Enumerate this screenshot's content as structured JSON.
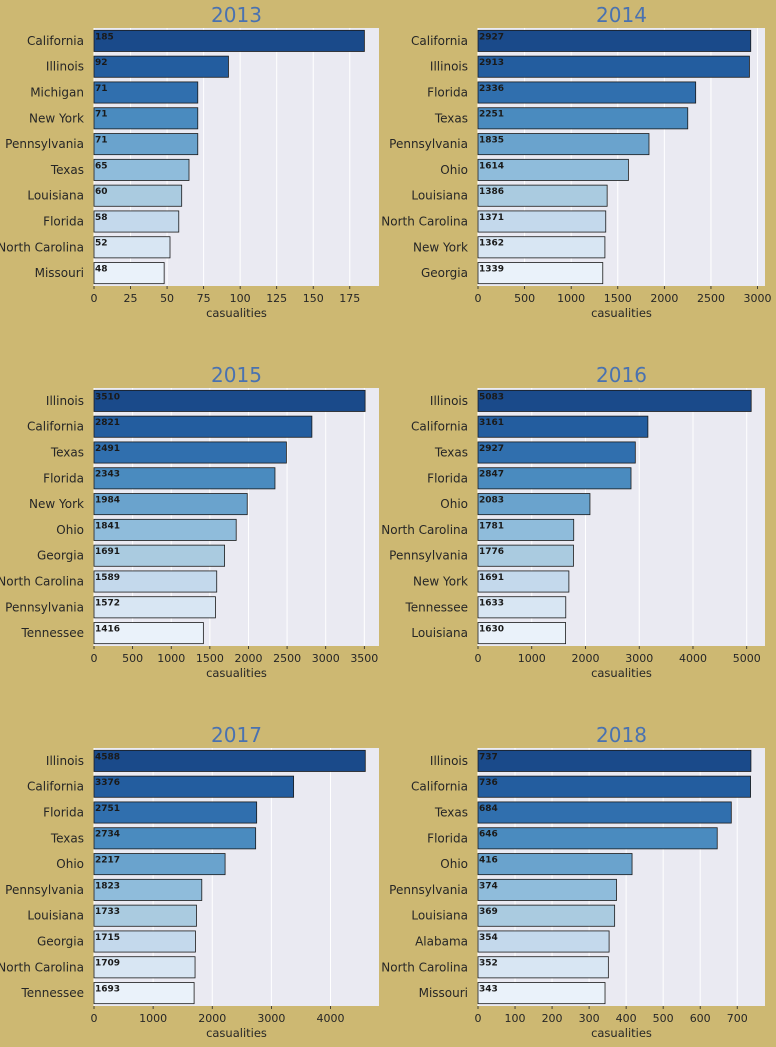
{
  "chart_data": [
    {
      "type": "bar",
      "orientation": "horizontal",
      "title": "2013",
      "xlabel": "casualities",
      "categories": [
        "California",
        "Illinois",
        "Michigan",
        "New York",
        "Pennsylvania",
        "Texas",
        "Louisiana",
        "Florida",
        "North Carolina",
        "Missouri"
      ],
      "values": [
        185,
        92,
        71,
        71,
        71,
        65,
        60,
        58,
        52,
        48
      ],
      "xticks": [
        0,
        25,
        50,
        75,
        100,
        125,
        150,
        175
      ],
      "xlim": [
        0,
        195
      ]
    },
    {
      "type": "bar",
      "orientation": "horizontal",
      "title": "2014",
      "xlabel": "casualities",
      "categories": [
        "California",
        "Illinois",
        "Florida",
        "Texas",
        "Pennsylvania",
        "Ohio",
        "Louisiana",
        "North Carolina",
        "New York",
        "Georgia"
      ],
      "values": [
        2927,
        2913,
        2336,
        2251,
        1835,
        1614,
        1386,
        1371,
        1362,
        1339
      ],
      "xticks": [
        0,
        500,
        1000,
        1500,
        2000,
        2500,
        3000
      ],
      "xlim": [
        0,
        3080
      ]
    },
    {
      "type": "bar",
      "orientation": "horizontal",
      "title": "2015",
      "xlabel": "casualities",
      "categories": [
        "Illinois",
        "California",
        "Texas",
        "Florida",
        "New York",
        "Ohio",
        "Georgia",
        "North Carolina",
        "Pennsylvania",
        "Tennessee"
      ],
      "values": [
        3510,
        2821,
        2491,
        2343,
        1984,
        1841,
        1691,
        1589,
        1572,
        1416
      ],
      "xticks": [
        0,
        500,
        1000,
        1500,
        2000,
        2500,
        3000,
        3500
      ],
      "xlim": [
        0,
        3690
      ]
    },
    {
      "type": "bar",
      "orientation": "horizontal",
      "title": "2016",
      "xlabel": "casualities",
      "categories": [
        "Illinois",
        "California",
        "Texas",
        "Florida",
        "Ohio",
        "North Carolina",
        "Pennsylvania",
        "New York",
        "Tennessee",
        "Louisiana"
      ],
      "values": [
        5083,
        3161,
        2927,
        2847,
        2083,
        1781,
        1776,
        1691,
        1633,
        1630
      ],
      "xticks": [
        0,
        1000,
        2000,
        3000,
        4000,
        5000
      ],
      "xlim": [
        0,
        5340
      ]
    },
    {
      "type": "bar",
      "orientation": "horizontal",
      "title": "2017",
      "xlabel": "casualities",
      "categories": [
        "Illinois",
        "California",
        "Florida",
        "Texas",
        "Ohio",
        "Pennsylvania",
        "Louisiana",
        "Georgia",
        "North Carolina",
        "Tennessee"
      ],
      "values": [
        4588,
        3376,
        2751,
        2734,
        2217,
        1823,
        1733,
        1715,
        1709,
        1693
      ],
      "xticks": [
        0,
        1000,
        2000,
        3000,
        4000
      ],
      "xlim": [
        0,
        4820
      ]
    },
    {
      "type": "bar",
      "orientation": "horizontal",
      "title": "2018",
      "xlabel": "casualities",
      "categories": [
        "Illinois",
        "California",
        "Texas",
        "Florida",
        "Ohio",
        "Pennsylvania",
        "Louisiana",
        "Alabama",
        "North Carolina",
        "Missouri"
      ],
      "values": [
        737,
        736,
        684,
        646,
        416,
        374,
        369,
        354,
        352,
        343
      ],
      "xticks": [
        0,
        100,
        200,
        300,
        400,
        500,
        600,
        700
      ],
      "xlim": [
        0,
        775
      ]
    }
  ],
  "colors": {
    "figure_background": "#cdb872",
    "plot_background": "#eaeaf2",
    "title": "#4a72b0",
    "palette": [
      "#1a4a8a",
      "#235d9f",
      "#306fae",
      "#4a8bbf",
      "#6aa3cd",
      "#8fbcdb",
      "#aacbe0",
      "#c4d9ec",
      "#d8e6f3",
      "#eaf2fa"
    ]
  }
}
